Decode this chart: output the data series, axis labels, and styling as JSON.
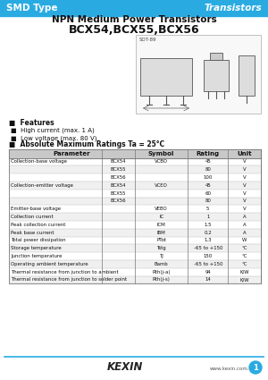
{
  "title1": "NPN Medium Power Transistors",
  "title2": "BCX54,BCX55,BCX56",
  "header_left": "SMD Type",
  "header_right": "Transistors",
  "header_bg": "#29ABE2",
  "header_text_color": "#FFFFFF",
  "features_title": "■  Features",
  "features": [
    "■  High current (max. 1 A)",
    "■  Low voltage (max. 80 V)"
  ],
  "abs_max_title": "■  Absolute Maximum Ratings Ta = 25°C",
  "table_rows": [
    [
      "Collection-base voltage",
      "BCX54",
      "VCBO",
      "45",
      "V"
    ],
    [
      "",
      "BCX55",
      "",
      "80",
      "V"
    ],
    [
      "",
      "BCX56",
      "",
      "100",
      "V"
    ],
    [
      "Collection-emitter voltage",
      "BCX54",
      "VCEO",
      "45",
      "V"
    ],
    [
      "",
      "BCX55",
      "",
      "60",
      "V"
    ],
    [
      "",
      "BCX56",
      "",
      "80",
      "V"
    ],
    [
      "Emitter-base voltage",
      "",
      "VEBO",
      "5",
      "V"
    ],
    [
      "Collection current",
      "",
      "IC",
      "1",
      "A"
    ],
    [
      "Peak collection current",
      "",
      "ICM",
      "1.5",
      "A"
    ],
    [
      "Peak base current",
      "",
      "IBM",
      "0.2",
      "A"
    ],
    [
      "Total power dissipation",
      "",
      "PTot",
      "1.3",
      "W"
    ],
    [
      "Storage temperature",
      "",
      "Tstg",
      "-65 to +150",
      "°C"
    ],
    [
      "Junction temperature",
      "",
      "TJ",
      "150",
      "°C"
    ],
    [
      "Operating ambient temperature",
      "",
      "Bamb",
      "-65 to +150",
      "°C"
    ],
    [
      "Thermal resistance from junction to ambient",
      "",
      "Rth(j-a)",
      "94",
      "K/W"
    ],
    [
      "Thermal resistance from junction to solder point",
      "",
      "Rth(j-s)",
      "14",
      "K/W"
    ]
  ],
  "footer_logo": "KEXIN",
  "footer_url": "www.kexin.com.cn",
  "bg_color": "#FFFFFF",
  "header_bg2": "#1E88C7",
  "col_props": [
    0.37,
    0.13,
    0.21,
    0.16,
    0.13
  ]
}
